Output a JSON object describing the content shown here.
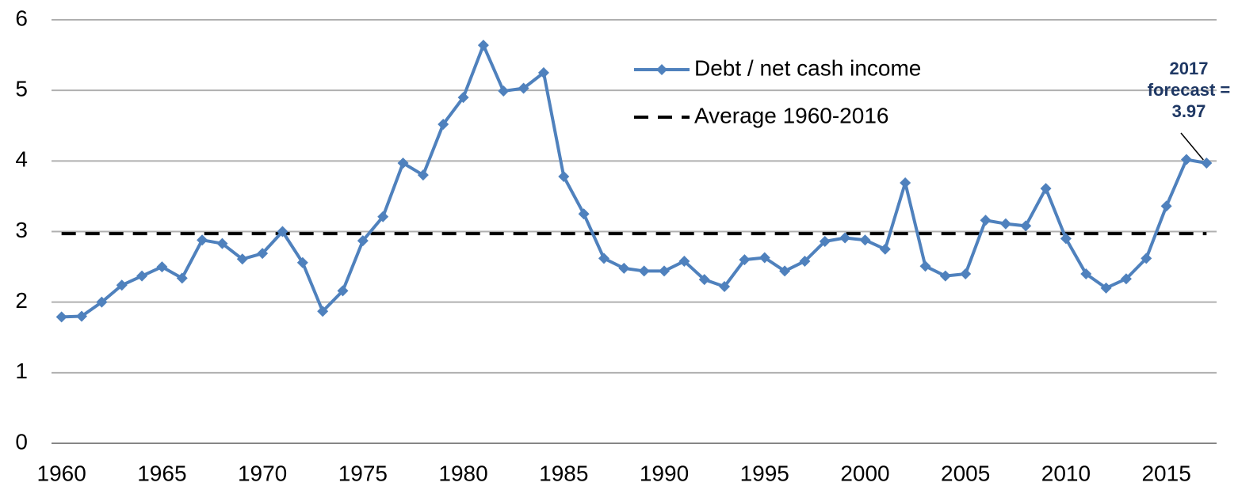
{
  "chart_data": {
    "type": "line",
    "x": [
      1960,
      1961,
      1962,
      1963,
      1964,
      1965,
      1966,
      1967,
      1968,
      1969,
      1970,
      1971,
      1972,
      1973,
      1974,
      1975,
      1976,
      1977,
      1978,
      1979,
      1980,
      1981,
      1982,
      1983,
      1984,
      1985,
      1986,
      1987,
      1988,
      1989,
      1990,
      1991,
      1992,
      1993,
      1994,
      1995,
      1996,
      1997,
      1998,
      1999,
      2000,
      2001,
      2002,
      2003,
      2004,
      2005,
      2006,
      2007,
      2008,
      2009,
      2010,
      2011,
      2012,
      2013,
      2014,
      2015,
      2016,
      2017
    ],
    "series": [
      {
        "name": "Debt / net cash income",
        "color": "#4f81bd",
        "values": [
          1.79,
          1.8,
          2.0,
          2.24,
          2.37,
          2.5,
          2.34,
          2.88,
          2.83,
          2.61,
          2.69,
          3.0,
          2.56,
          1.87,
          2.16,
          2.87,
          3.21,
          3.97,
          3.8,
          4.52,
          4.9,
          5.64,
          4.99,
          5.03,
          5.25,
          3.78,
          3.25,
          2.62,
          2.48,
          2.44,
          2.44,
          2.58,
          2.32,
          2.22,
          2.6,
          2.63,
          2.44,
          2.58,
          2.86,
          2.91,
          2.88,
          2.75,
          3.69,
          2.51,
          2.37,
          2.4,
          3.16,
          3.11,
          3.08,
          3.61,
          2.9,
          2.4,
          2.2,
          2.33,
          2.62,
          3.36,
          4.02,
          3.97
        ]
      },
      {
        "name": "Average 1960-2016",
        "color": "#000000",
        "dashed": true,
        "value": 2.97
      }
    ],
    "annotation": {
      "lines": [
        "2017",
        "forecast =",
        "3.97"
      ]
    },
    "xlim": [
      1959.5,
      2017.5
    ],
    "xticks": [
      1960,
      1965,
      1970,
      1975,
      1980,
      1985,
      1990,
      1995,
      2000,
      2005,
      2010,
      2015
    ],
    "ylim": [
      0,
      6
    ],
    "yticks": [
      0,
      1,
      2,
      3,
      4,
      5,
      6
    ],
    "grid": true
  }
}
